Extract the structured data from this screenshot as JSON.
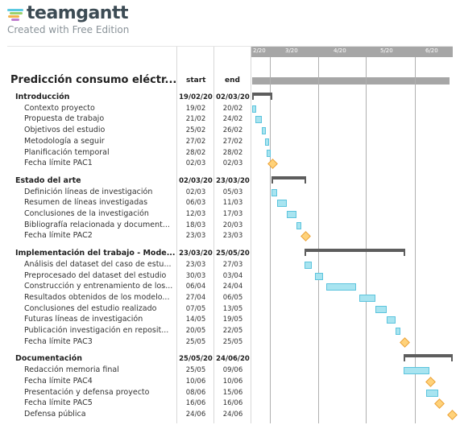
{
  "brand": {
    "name": "teamgantt",
    "subtitle": "Created with Free Edition",
    "colors": {
      "stripe1": "#5ac9e1",
      "stripe2": "#9ad16c",
      "stripe3": "#f3b34c",
      "stripe4": "#c07fcf"
    }
  },
  "timeline": {
    "months": [
      "2/20",
      "3/20",
      "4/20",
      "5/20",
      "6/20"
    ]
  },
  "header": {
    "title": "Predicción consumo eléctr...",
    "start_label": "start",
    "end_label": "end"
  },
  "rows": [
    {
      "name": "Introducción",
      "start": "19/02/20",
      "end": "02/03/20",
      "type": "group",
      "bar": {
        "from": "19/02",
        "to": "02/03"
      }
    },
    {
      "name": "Contexto proyecto",
      "start": "19/02",
      "end": "20/02",
      "type": "task",
      "bar": {
        "from": "19/02",
        "to": "20/02"
      }
    },
    {
      "name": "Propuesta de trabajo",
      "start": "21/02",
      "end": "24/02",
      "type": "task",
      "bar": {
        "from": "21/02",
        "to": "24/02"
      }
    },
    {
      "name": "Objetivos del estudio",
      "start": "25/02",
      "end": "26/02",
      "type": "task",
      "bar": {
        "from": "25/02",
        "to": "26/02"
      }
    },
    {
      "name": "Metodología a seguir",
      "start": "27/02",
      "end": "27/02",
      "type": "task",
      "bar": {
        "from": "27/02",
        "to": "27/02"
      }
    },
    {
      "name": "Planificación temporal",
      "start": "28/02",
      "end": "28/02",
      "type": "task",
      "bar": {
        "from": "28/02",
        "to": "28/02"
      }
    },
    {
      "name": "Fecha límite PAC1",
      "start": "02/03",
      "end": "02/03",
      "type": "milestone",
      "bar": {
        "from": "02/03",
        "to": "02/03"
      }
    },
    {
      "name": "Estado del arte",
      "start": "02/03/20",
      "end": "23/03/20",
      "type": "group",
      "bar": {
        "from": "02/03",
        "to": "23/03"
      }
    },
    {
      "name": "Definición líneas de investigación",
      "start": "02/03",
      "end": "05/03",
      "type": "task",
      "bar": {
        "from": "02/03",
        "to": "05/03"
      }
    },
    {
      "name": "Resumen de líneas investigadas",
      "start": "06/03",
      "end": "11/03",
      "type": "task",
      "bar": {
        "from": "06/03",
        "to": "11/03"
      }
    },
    {
      "name": "Conclusiones de la investigación",
      "start": "12/03",
      "end": "17/03",
      "type": "task",
      "bar": {
        "from": "12/03",
        "to": "17/03"
      }
    },
    {
      "name": "Bibliografía relacionada y document...",
      "start": "18/03",
      "end": "20/03",
      "type": "task",
      "bar": {
        "from": "18/03",
        "to": "20/03"
      }
    },
    {
      "name": "Fecha límite PAC2",
      "start": "23/03",
      "end": "23/03",
      "type": "milestone",
      "bar": {
        "from": "23/03",
        "to": "23/03"
      }
    },
    {
      "name": "Implementación del trabajo - Mode...",
      "start": "23/03/20",
      "end": "25/05/20",
      "type": "group",
      "bar": {
        "from": "23/03",
        "to": "25/05"
      }
    },
    {
      "name": "Análisis del dataset del caso de estu...",
      "start": "23/03",
      "end": "27/03",
      "type": "task",
      "bar": {
        "from": "23/03",
        "to": "27/03"
      }
    },
    {
      "name": "Preprocesado del dataset del estudio",
      "start": "30/03",
      "end": "03/04",
      "type": "task",
      "bar": {
        "from": "30/03",
        "to": "03/04"
      }
    },
    {
      "name": "Construcción y entrenamiento de los...",
      "start": "06/04",
      "end": "24/04",
      "type": "task",
      "bar": {
        "from": "06/04",
        "to": "24/04"
      }
    },
    {
      "name": "Resultados obtenidos de los modelo...",
      "start": "27/04",
      "end": "06/05",
      "type": "task",
      "bar": {
        "from": "27/04",
        "to": "06/05"
      }
    },
    {
      "name": "Conclusiones del estudio realizado",
      "start": "07/05",
      "end": "13/05",
      "type": "task",
      "bar": {
        "from": "07/05",
        "to": "13/05"
      }
    },
    {
      "name": "Futuras líneas de investigación",
      "start": "14/05",
      "end": "19/05",
      "type": "task",
      "bar": {
        "from": "14/05",
        "to": "19/05"
      }
    },
    {
      "name": "Publicación investigación en reposit...",
      "start": "20/05",
      "end": "22/05",
      "type": "task",
      "bar": {
        "from": "20/05",
        "to": "22/05"
      }
    },
    {
      "name": "Fecha límite PAC3",
      "start": "25/05",
      "end": "25/05",
      "type": "milestone",
      "bar": {
        "from": "25/05",
        "to": "25/05"
      }
    },
    {
      "name": "Documentación",
      "start": "25/05/20",
      "end": "24/06/20",
      "type": "group",
      "bar": {
        "from": "25/05",
        "to": "24/06"
      }
    },
    {
      "name": "Redacción memoria final",
      "start": "25/05",
      "end": "09/06",
      "type": "task",
      "bar": {
        "from": "25/05",
        "to": "09/06"
      }
    },
    {
      "name": "Fecha límite PAC4",
      "start": "10/06",
      "end": "10/06",
      "type": "milestone",
      "bar": {
        "from": "10/06",
        "to": "10/06"
      }
    },
    {
      "name": "Presentación y defensa proyecto",
      "start": "08/06",
      "end": "15/06",
      "type": "task",
      "bar": {
        "from": "08/06",
        "to": "15/06"
      }
    },
    {
      "name": "Fecha límite PAC5",
      "start": "16/06",
      "end": "16/06",
      "type": "milestone",
      "bar": {
        "from": "16/06",
        "to": "16/06"
      }
    },
    {
      "name": "Defensa pública",
      "start": "24/06",
      "end": "24/06",
      "type": "milestone",
      "bar": {
        "from": "24/06",
        "to": "24/06"
      }
    }
  ]
}
